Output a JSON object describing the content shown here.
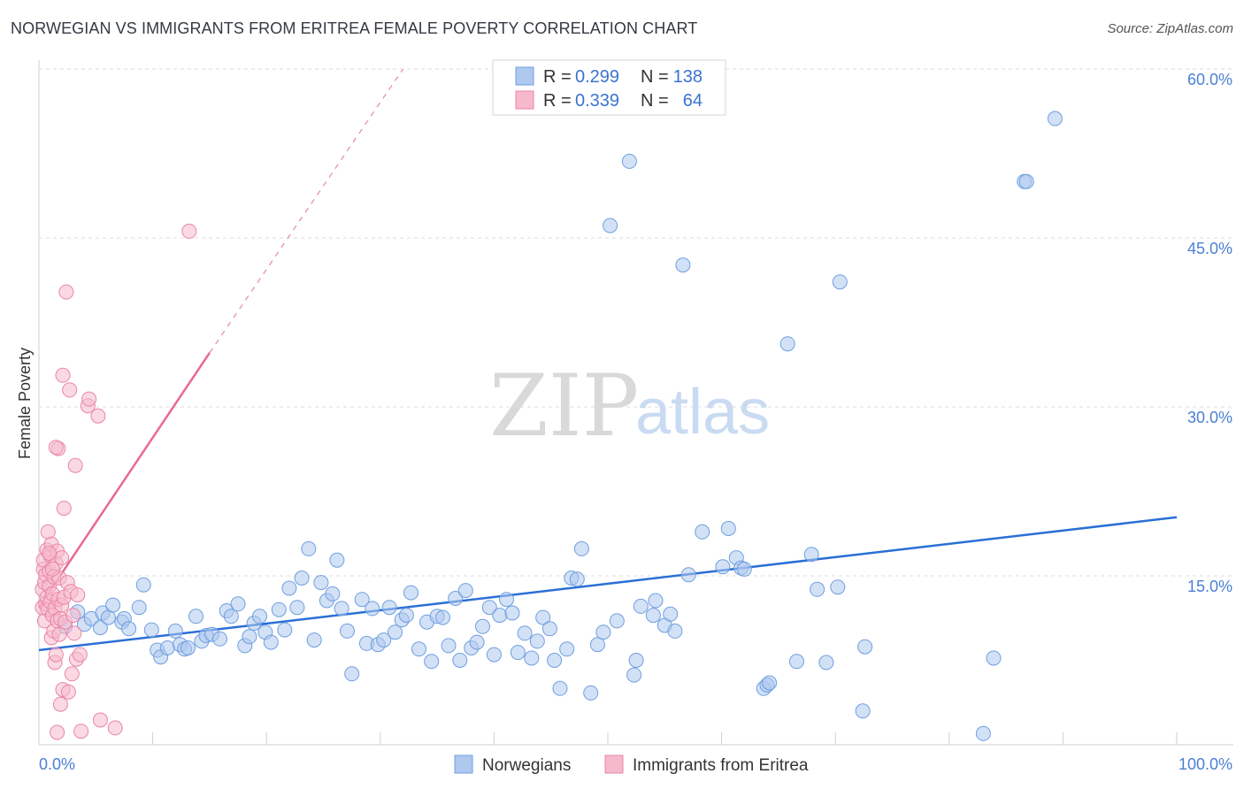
{
  "header": {
    "title": "NORWEGIAN VS IMMIGRANTS FROM ERITREA FEMALE POVERTY CORRELATION CHART",
    "source": "Source: ZipAtlas.com"
  },
  "watermark": {
    "zip": "ZIP",
    "atlas": "atlas"
  },
  "colors": {
    "blue_fill": "#aec8ee",
    "blue_stroke": "#6f9fe0",
    "blue_line": "#2a6fd6",
    "pink_fill": "#f6b9cc",
    "pink_stroke": "#ea86a6",
    "pink_line": "#e86a93",
    "tick_text": "#4a7fd4"
  },
  "legend": {
    "rows": [
      {
        "r_label": "R = ",
        "r_value": "0.299",
        "n_label": "N = ",
        "n_value": "138"
      },
      {
        "r_label": "R = ",
        "r_value": "0.339",
        "n_label": "N = ",
        "n_value": "64"
      }
    ]
  },
  "bottom_legend": [
    "Norwegians",
    "Immigrants from Eritrea"
  ],
  "chart_data": {
    "type": "scatter",
    "title": "NORWEGIAN VS IMMIGRANTS FROM ERITREA FEMALE POVERTY CORRELATION CHART",
    "xlabel": "",
    "ylabel": "Female Poverty",
    "xlim": [
      0,
      100
    ],
    "ylim": [
      0,
      60
    ],
    "x_tick_labels": [
      "0.0%",
      "100.0%"
    ],
    "y_ticks": [
      15,
      30,
      45,
      60
    ],
    "y_tick_labels": [
      "15.0%",
      "30.0%",
      "45.0%",
      "60.0%"
    ],
    "grid": true,
    "legend_position": "top-center",
    "series": [
      {
        "name": "Norwegians",
        "R": 0.299,
        "N": 138,
        "trend": {
          "x": [
            0,
            100
          ],
          "y": [
            8.4,
            20.2
          ]
        },
        "points": [
          [
            2.3,
            10.5
          ],
          [
            3.4,
            11.8
          ],
          [
            4.0,
            10.7
          ],
          [
            4.6,
            11.2
          ],
          [
            5.4,
            10.4
          ],
          [
            5.6,
            11.7
          ],
          [
            6.1,
            11.3
          ],
          [
            6.5,
            12.4
          ],
          [
            7.3,
            10.9
          ],
          [
            7.5,
            11.2
          ],
          [
            7.9,
            10.3
          ],
          [
            8.8,
            12.2
          ],
          [
            9.2,
            14.2
          ],
          [
            9.9,
            10.2
          ],
          [
            10.4,
            8.4
          ],
          [
            10.7,
            7.8
          ],
          [
            11.3,
            8.6
          ],
          [
            12.0,
            10.1
          ],
          [
            12.4,
            8.9
          ],
          [
            12.8,
            8.5
          ],
          [
            13.1,
            8.6
          ],
          [
            13.8,
            11.4
          ],
          [
            14.3,
            9.2
          ],
          [
            14.7,
            9.7
          ],
          [
            15.2,
            9.8
          ],
          [
            15.9,
            9.4
          ],
          [
            16.5,
            11.9
          ],
          [
            16.9,
            11.4
          ],
          [
            17.5,
            12.5
          ],
          [
            18.1,
            8.8
          ],
          [
            18.5,
            9.6
          ],
          [
            18.9,
            10.8
          ],
          [
            19.4,
            11.4
          ],
          [
            19.9,
            10.0
          ],
          [
            20.4,
            9.1
          ],
          [
            21.1,
            12.0
          ],
          [
            21.6,
            10.2
          ],
          [
            22.0,
            13.9
          ],
          [
            22.7,
            12.2
          ],
          [
            23.1,
            14.8
          ],
          [
            23.7,
            17.4
          ],
          [
            24.2,
            9.3
          ],
          [
            24.8,
            14.4
          ],
          [
            25.3,
            12.8
          ],
          [
            25.8,
            13.4
          ],
          [
            26.2,
            16.4
          ],
          [
            26.6,
            12.1
          ],
          [
            27.1,
            10.1
          ],
          [
            27.5,
            6.3
          ],
          [
            28.4,
            12.9
          ],
          [
            28.8,
            9.0
          ],
          [
            29.3,
            12.1
          ],
          [
            29.8,
            8.9
          ],
          [
            30.3,
            9.3
          ],
          [
            30.8,
            12.2
          ],
          [
            31.3,
            10.0
          ],
          [
            31.9,
            11.1
          ],
          [
            32.3,
            11.5
          ],
          [
            32.7,
            13.5
          ],
          [
            33.4,
            8.5
          ],
          [
            34.1,
            10.9
          ],
          [
            34.5,
            7.4
          ],
          [
            35.0,
            11.4
          ],
          [
            35.5,
            11.3
          ],
          [
            36.0,
            8.8
          ],
          [
            36.6,
            13.0
          ],
          [
            37.0,
            7.5
          ],
          [
            37.5,
            13.7
          ],
          [
            38.0,
            8.6
          ],
          [
            38.5,
            9.1
          ],
          [
            39.0,
            10.5
          ],
          [
            39.6,
            12.2
          ],
          [
            40.0,
            8.0
          ],
          [
            40.5,
            11.5
          ],
          [
            41.1,
            12.9
          ],
          [
            41.6,
            11.7
          ],
          [
            42.1,
            8.2
          ],
          [
            42.7,
            9.9
          ],
          [
            43.3,
            7.7
          ],
          [
            43.8,
            9.2
          ],
          [
            44.3,
            11.3
          ],
          [
            44.9,
            10.3
          ],
          [
            45.3,
            7.5
          ],
          [
            45.8,
            5.0
          ],
          [
            46.4,
            8.5
          ],
          [
            46.8,
            14.8
          ],
          [
            47.3,
            14.7
          ],
          [
            47.7,
            17.4
          ],
          [
            48.5,
            4.6
          ],
          [
            49.1,
            8.9
          ],
          [
            49.6,
            10.0
          ],
          [
            50.2,
            46.1
          ],
          [
            50.8,
            11.0
          ],
          [
            51.9,
            51.8
          ],
          [
            52.3,
            6.2
          ],
          [
            52.5,
            7.5
          ],
          [
            52.9,
            12.3
          ],
          [
            54.0,
            11.5
          ],
          [
            54.2,
            12.8
          ],
          [
            55.0,
            10.6
          ],
          [
            55.5,
            11.6
          ],
          [
            55.9,
            10.1
          ],
          [
            56.6,
            42.6
          ],
          [
            57.1,
            15.1
          ],
          [
            58.3,
            18.9
          ],
          [
            60.1,
            15.8
          ],
          [
            60.6,
            19.2
          ],
          [
            61.3,
            16.6
          ],
          [
            61.7,
            15.7
          ],
          [
            62.0,
            15.6
          ],
          [
            63.7,
            5.0
          ],
          [
            64.0,
            5.3
          ],
          [
            64.2,
            5.5
          ],
          [
            65.8,
            35.6
          ],
          [
            66.6,
            7.4
          ],
          [
            67.9,
            16.9
          ],
          [
            68.4,
            13.8
          ],
          [
            69.2,
            7.3
          ],
          [
            70.2,
            14.0
          ],
          [
            70.4,
            41.1
          ],
          [
            72.4,
            3.0
          ],
          [
            72.6,
            8.7
          ],
          [
            83.0,
            1.0
          ],
          [
            83.9,
            7.7
          ],
          [
            86.6,
            50.0
          ],
          [
            86.8,
            50.0
          ],
          [
            89.3,
            55.6
          ]
        ]
      },
      {
        "name": "Immigrants from Eritrea",
        "R": 0.339,
        "N": 64,
        "trend": {
          "x": [
            0,
            15.0
          ],
          "y": [
            12.2,
            34.8
          ]
        },
        "trend_extended": {
          "x": [
            15.0,
            32.0
          ],
          "y": [
            34.8,
            60.0
          ]
        },
        "points": [
          [
            0.3,
            12.2
          ],
          [
            0.3,
            13.8
          ],
          [
            0.4,
            15.6
          ],
          [
            0.4,
            16.4
          ],
          [
            0.5,
            11.0
          ],
          [
            0.5,
            14.4
          ],
          [
            0.6,
            12.5
          ],
          [
            0.6,
            15.1
          ],
          [
            0.7,
            17.3
          ],
          [
            0.7,
            13.1
          ],
          [
            0.8,
            18.9
          ],
          [
            0.8,
            12.0
          ],
          [
            0.9,
            15.4
          ],
          [
            0.9,
            14.1
          ],
          [
            1.0,
            16.8
          ],
          [
            1.0,
            12.7
          ],
          [
            1.1,
            9.5
          ],
          [
            1.1,
            17.8
          ],
          [
            1.2,
            11.5
          ],
          [
            1.2,
            13.4
          ],
          [
            1.3,
            14.9
          ],
          [
            1.3,
            10.1
          ],
          [
            1.4,
            7.3
          ],
          [
            1.4,
            12.1
          ],
          [
            1.5,
            16.1
          ],
          [
            1.5,
            8.0
          ],
          [
            1.6,
            17.2
          ],
          [
            1.6,
            11.0
          ],
          [
            1.7,
            26.3
          ],
          [
            1.7,
            12.9
          ],
          [
            1.8,
            14.8
          ],
          [
            1.8,
            9.8
          ],
          [
            1.9,
            3.6
          ],
          [
            1.9,
            11.2
          ],
          [
            2.0,
            16.6
          ],
          [
            2.0,
            12.4
          ],
          [
            2.1,
            4.9
          ],
          [
            2.2,
            13.1
          ],
          [
            2.2,
            21.0
          ],
          [
            2.3,
            10.9
          ],
          [
            2.4,
            40.2
          ],
          [
            2.5,
            14.4
          ],
          [
            2.6,
            4.7
          ],
          [
            2.7,
            31.5
          ],
          [
            2.8,
            13.6
          ],
          [
            2.9,
            6.3
          ],
          [
            3.0,
            11.5
          ],
          [
            3.1,
            9.9
          ],
          [
            3.2,
            24.8
          ],
          [
            3.3,
            7.6
          ],
          [
            3.4,
            13.3
          ],
          [
            3.6,
            8.0
          ],
          [
            3.7,
            1.2
          ],
          [
            4.3,
            30.1
          ],
          [
            4.4,
            30.7
          ],
          [
            5.2,
            29.2
          ],
          [
            5.4,
            2.2
          ],
          [
            6.7,
            1.5
          ],
          [
            13.2,
            45.6
          ],
          [
            1.6,
            1.1
          ],
          [
            2.1,
            32.8
          ],
          [
            1.5,
            26.4
          ],
          [
            0.9,
            17.0
          ],
          [
            1.2,
            15.6
          ]
        ]
      }
    ]
  }
}
